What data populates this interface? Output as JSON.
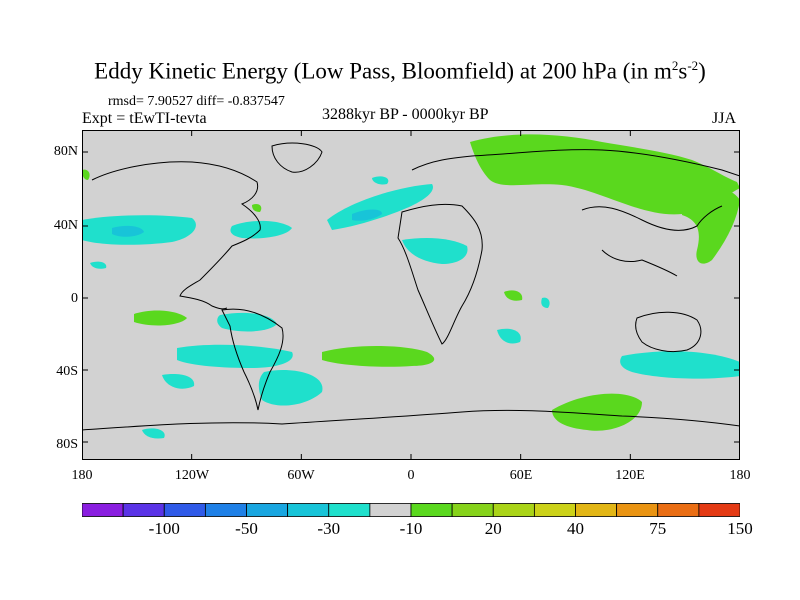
{
  "title": {
    "main": "Eddy Kinetic Energy (Low Pass, Bloomfield) at 200 hPa (in m",
    "sup1": "2",
    "s": "s",
    "sup2": "-2",
    "close": ")"
  },
  "stats": "rmsd= 7.90527 diff= -0.837547",
  "expt": "Expt = tEwTI-tevta",
  "period": "3288kyr BP - 0000kyr BP",
  "season": "JJA",
  "lat_labels": [
    "80N",
    "40N",
    "0",
    "40S",
    "80S"
  ],
  "lon_labels": [
    "180",
    "120W",
    "60W",
    "0",
    "60E",
    "120E",
    "180"
  ],
  "colorbar": {
    "colors": [
      "#8a1ee0",
      "#5a33e6",
      "#2f5ae8",
      "#1f80e6",
      "#19a6e0",
      "#18c4d8",
      "#1fe0cc",
      "#d2d2d2",
      "#5ad81e",
      "#86d31a",
      "#aad418",
      "#ccd219",
      "#e2b616",
      "#ea9412",
      "#ea6e14",
      "#e43a14"
    ],
    "labels": [
      "-100",
      "-50",
      "-30",
      "-10",
      "20",
      "40",
      "75",
      "150"
    ]
  },
  "colors": {
    "land_ocean": "#d2d2d2",
    "negative": "#1fe0cc",
    "negative_strong": "#18c4d8",
    "positive": "#5ad81e"
  }
}
